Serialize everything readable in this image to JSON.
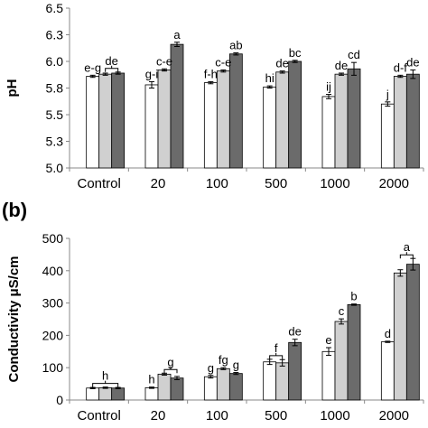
{
  "colors": {
    "series": [
      "#ffffff",
      "#d0d0d0",
      "#6b6b6b"
    ],
    "stroke": "#000000",
    "axis": "#888888"
  },
  "chart_data": [
    {
      "type": "bar",
      "panel_label": "",
      "title": "",
      "xlabel": "",
      "ylabel": "pH",
      "categories": [
        "Control",
        "20",
        "100",
        "500",
        "1000",
        "2000"
      ],
      "ylim": [
        5.0,
        6.5
      ],
      "yticks": [
        "5.0",
        "5.3",
        "5.5",
        "5.8",
        "6.0",
        "6.3",
        "6.5"
      ],
      "ytick_values": [
        5.0,
        5.25,
        5.5,
        5.75,
        6.0,
        6.25,
        6.5
      ],
      "grid": false,
      "series": [
        {
          "values": [
            5.86,
            5.78,
            5.8,
            5.76,
            5.67,
            5.6
          ],
          "errors": [
            0.01,
            0.03,
            0.01,
            0.01,
            0.02,
            0.02
          ]
        },
        {
          "values": [
            5.88,
            5.92,
            5.91,
            5.9,
            5.88,
            5.86
          ],
          "errors": [
            0.01,
            0.01,
            0.01,
            0.01,
            0.01,
            0.01
          ]
        },
        {
          "values": [
            5.89,
            6.16,
            6.07,
            6.0,
            5.93,
            5.88
          ],
          "errors": [
            0.01,
            0.02,
            0.01,
            0.01,
            0.06,
            0.04
          ]
        }
      ],
      "annotations": [
        {
          "category": 0,
          "series": 0,
          "text": "e-g"
        },
        {
          "category": 0,
          "series": 1.5,
          "text": "de",
          "bracket": true
        },
        {
          "category": 1,
          "series": 0,
          "text": "g-i"
        },
        {
          "category": 1,
          "series": 1,
          "text": "c-e"
        },
        {
          "category": 1,
          "series": 2,
          "text": "a"
        },
        {
          "category": 2,
          "series": 0,
          "text": "f-h"
        },
        {
          "category": 2,
          "series": 1,
          "text": "c-e"
        },
        {
          "category": 2,
          "series": 2,
          "text": "ab"
        },
        {
          "category": 3,
          "series": 0,
          "text": "hi"
        },
        {
          "category": 3,
          "series": 1,
          "text": "de"
        },
        {
          "category": 3,
          "series": 2,
          "text": "bc"
        },
        {
          "category": 4,
          "series": 0,
          "text": "ij"
        },
        {
          "category": 4,
          "series": 1,
          "text": "de"
        },
        {
          "category": 4,
          "series": 2,
          "text": "cd"
        },
        {
          "category": 5,
          "series": 0,
          "text": "j"
        },
        {
          "category": 5,
          "series": 1,
          "text": "d-f"
        },
        {
          "category": 5,
          "series": 2,
          "text": "de"
        }
      ]
    },
    {
      "type": "bar",
      "panel_label": "(b)",
      "title": "",
      "xlabel": "",
      "ylabel": "Conductivity μS/cm",
      "categories": [
        "Control",
        "20",
        "100",
        "500",
        "1000",
        "2000"
      ],
      "ylim": [
        0,
        500
      ],
      "yticks": [
        "0",
        "100",
        "200",
        "300",
        "400",
        "500"
      ],
      "ytick_values": [
        0,
        100,
        200,
        300,
        400,
        500
      ],
      "grid": false,
      "series": [
        {
          "values": [
            37,
            38,
            72,
            118,
            150,
            180
          ],
          "errors": [
            2,
            2,
            4,
            8,
            12,
            2
          ]
        },
        {
          "values": [
            38,
            80,
            97,
            115,
            243,
            393
          ],
          "errors": [
            2,
            3,
            3,
            10,
            8,
            10
          ]
        },
        {
          "values": [
            37,
            68,
            82,
            178,
            295,
            420
          ],
          "errors": [
            2,
            5,
            3,
            10,
            2,
            18
          ]
        }
      ],
      "annotations": [
        {
          "category": 0,
          "series": 1,
          "text": "h",
          "bracket": true
        },
        {
          "category": 1,
          "series": 0,
          "text": "h"
        },
        {
          "category": 1,
          "series": 1.5,
          "text": "g",
          "bracket": true
        },
        {
          "category": 2,
          "series": 0,
          "text": "g"
        },
        {
          "category": 2,
          "series": 1,
          "text": "fg"
        },
        {
          "category": 2,
          "series": 2,
          "text": "g"
        },
        {
          "category": 3,
          "series": 0.5,
          "text": "f",
          "bracket": true
        },
        {
          "category": 3,
          "series": 2,
          "text": "de"
        },
        {
          "category": 4,
          "series": 0,
          "text": "e"
        },
        {
          "category": 4,
          "series": 1,
          "text": "c"
        },
        {
          "category": 4,
          "series": 2,
          "text": "b"
        },
        {
          "category": 5,
          "series": 0,
          "text": "d"
        },
        {
          "category": 5,
          "series": 1.5,
          "text": "a",
          "bracket": true
        }
      ]
    }
  ]
}
